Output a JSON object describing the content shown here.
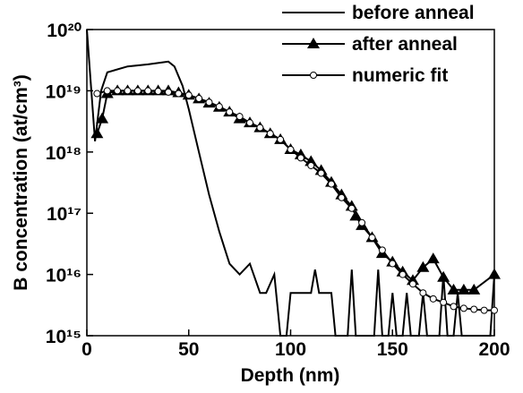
{
  "chart_data": {
    "type": "line",
    "xlabel": "Depth (nm)",
    "ylabel": "B concentration (at/cm³)",
    "xlim": [
      0,
      200
    ],
    "xticks": [
      0,
      50,
      100,
      150,
      200
    ],
    "ylim": [
      1000000000000000.0,
      1e+20
    ],
    "log_y": true,
    "yticks": [
      {
        "value": 1000000000000000.0,
        "label": "10¹⁵"
      },
      {
        "value": 1e+16,
        "label": "10¹⁶"
      },
      {
        "value": 1e+17,
        "label": "10¹⁷"
      },
      {
        "value": 1e+18,
        "label": "10¹⁸"
      },
      {
        "value": 1e+19,
        "label": "10¹⁹"
      },
      {
        "value": 1e+20,
        "label": "10²⁰"
      }
    ],
    "legend": "upper right",
    "series": [
      {
        "name": "before anneal",
        "color": "#000000",
        "marker": "none",
        "x": [
          0,
          4,
          7,
          10,
          20,
          30,
          40,
          43,
          47,
          50,
          55,
          60,
          65,
          70,
          75,
          80,
          85,
          88,
          92,
          95,
          96,
          98,
          100,
          102,
          110,
          112,
          114,
          118,
          120,
          122,
          128,
          130,
          132,
          141,
          143,
          145,
          148,
          150,
          152,
          155,
          157,
          159,
          163,
          165,
          167,
          173,
          175,
          177,
          180,
          182,
          184,
          198,
          200
        ],
        "values": [
          1e+20,
          1.5e+18,
          1e+19,
          2e+19,
          2.5e+19,
          2.7e+19,
          3e+19,
          2.5e+19,
          1.2e+19,
          5e+18,
          1e+18,
          2e+17,
          5e+16,
          1.5e+16,
          1e+16,
          1.5e+16,
          5000000000000000.0,
          5000000000000000.0,
          1e+16,
          1000000000000000.0,
          1000000000000000.0,
          1000000000000000.0,
          5000000000000000.0,
          5000000000000000.0,
          5000000000000000.0,
          1.2e+16,
          5000000000000000.0,
          5000000000000000.0,
          5000000000000000.0,
          1000000000000000.0,
          1000000000000000.0,
          1.2e+16,
          1000000000000000.0,
          1000000000000000.0,
          1.2e+16,
          1000000000000000.0,
          1000000000000000.0,
          5000000000000000.0,
          1000000000000000.0,
          1000000000000000.0,
          5000000000000000.0,
          1000000000000000.0,
          1000000000000000.0,
          5000000000000000.0,
          1000000000000000.0,
          1000000000000000.0,
          1e+16,
          1000000000000000.0,
          1000000000000000.0,
          5000000000000000.0,
          1000000000000000.0,
          1000000000000000.0,
          1e+16
        ]
      },
      {
        "name": "after anneal",
        "color": "#000000",
        "marker": "triangle",
        "x": [
          5,
          7.5,
          10,
          15,
          20,
          25,
          30,
          35,
          40,
          45,
          50,
          55,
          60,
          65,
          70,
          75,
          80,
          85,
          90,
          95,
          100,
          105,
          110,
          115,
          120,
          125,
          130,
          132,
          135,
          140,
          145,
          150,
          155,
          160,
          165,
          170,
          175,
          180,
          185,
          190,
          200
        ],
        "values": [
          2e+18,
          3.5e+18,
          9e+18,
          1e+19,
          1e+19,
          1e+19,
          1e+19,
          1e+19,
          1e+19,
          9.3e+18,
          8.5e+18,
          7.4e+18,
          6.3e+18,
          5.4e+18,
          4.5e+18,
          3.5e+18,
          3e+18,
          2.5e+18,
          2e+18,
          1.6e+18,
          1.1e+18,
          9e+17,
          7e+17,
          5e+17,
          3.2e+17,
          2e+17,
          1.3e+17,
          9e+16,
          6.3e+16,
          4e+16,
          2.2e+16,
          1.6e+16,
          1.1e+16,
          8000000000000000.0,
          1.3e+16,
          1.8e+16,
          9000000000000000.0,
          5600000000000000.0,
          5600000000000000.0,
          5600000000000000.0,
          1e+16
        ]
      },
      {
        "name": "numeric fit",
        "color": "#000000",
        "marker": "circle",
        "x": [
          5,
          10,
          15,
          20,
          25,
          30,
          35,
          40,
          45,
          50,
          55,
          60,
          65,
          70,
          75,
          80,
          85,
          90,
          95,
          100,
          105,
          110,
          115,
          120,
          125,
          130,
          135,
          140,
          145,
          150,
          155,
          160,
          165,
          170,
          175,
          180,
          185,
          190,
          195,
          200
        ],
        "values": [
          9e+18,
          1e+19,
          1e+19,
          1e+19,
          1e+19,
          1e+19,
          9.8e+18,
          9.5e+18,
          9e+18,
          8.5e+18,
          7.5e+18,
          6.5e+18,
          5.5e+18,
          4.5e+18,
          3.8e+18,
          3e+18,
          2.5e+18,
          2e+18,
          1.6e+18,
          1.1e+18,
          8e+17,
          6e+17,
          4.5e+17,
          3e+17,
          1.8e+17,
          1.2e+17,
          7e+16,
          4e+16,
          2.5e+16,
          1.5e+16,
          1e+16,
          7000000000000000.0,
          5000000000000000.0,
          4000000000000000.0,
          3500000000000000.0,
          3000000000000000.0,
          2800000000000000.0,
          2700000000000000.0,
          2600000000000000.0,
          2600000000000000.0
        ]
      }
    ]
  }
}
